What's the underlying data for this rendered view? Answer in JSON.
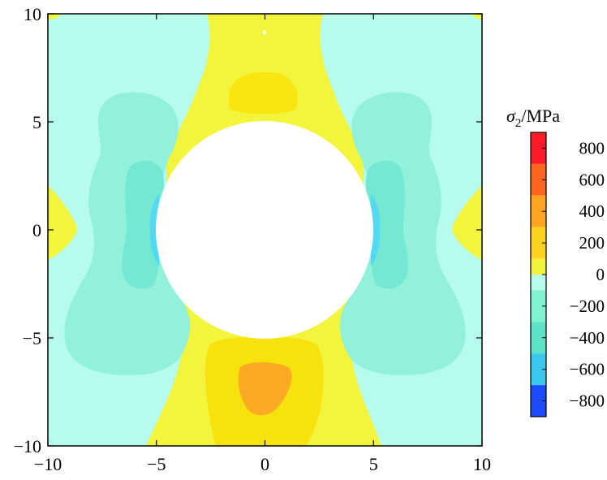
{
  "chart_data": {
    "type": "heatmap",
    "title": "",
    "xlabel": "",
    "ylabel": "",
    "xlim": [
      -10,
      10
    ],
    "ylim": [
      -10,
      10
    ],
    "xticks": [
      "−10",
      "−5",
      "0",
      "5",
      "10"
    ],
    "yticks": [
      "10",
      "5",
      "0",
      "−5",
      "−10"
    ],
    "hole": {
      "center": [
        0,
        0
      ],
      "radius": 5
    },
    "colorbar": {
      "label_symbol": "σ",
      "label_subscript": "2",
      "label_unit": "/MPa",
      "ticks": [
        "800",
        "600",
        "400",
        "200",
        "0",
        "−200",
        "−400",
        "−600",
        "−800"
      ],
      "range": [
        -900,
        900
      ],
      "levels": [
        {
          "min": 700,
          "max": 900,
          "color": "#ff1a2a"
        },
        {
          "min": 500,
          "max": 700,
          "color": "#ff6420"
        },
        {
          "min": 300,
          "max": 500,
          "color": "#ffa321"
        },
        {
          "min": 100,
          "max": 300,
          "color": "#ffd21f"
        },
        {
          "min": 0,
          "max": 100,
          "color": "#f1f23c"
        },
        {
          "min": -100,
          "max": 0,
          "color": "#b7fbec"
        },
        {
          "min": -300,
          "max": -100,
          "color": "#7ff2cf"
        },
        {
          "min": -500,
          "max": -300,
          "color": "#5ee3c8"
        },
        {
          "min": -700,
          "max": -500,
          "color": "#38c8ee"
        },
        {
          "min": -900,
          "max": -700,
          "color": "#1d4cff"
        }
      ]
    },
    "regions": [
      {
        "name": "background",
        "level": "-100..0",
        "color": "#b7fbec"
      },
      {
        "name": "vertical-band",
        "level": "0..100",
        "color": "#f3f43c"
      },
      {
        "name": "side-lobes",
        "level": "0..100",
        "color": "#f3f43c"
      },
      {
        "name": "top-zone",
        "level": "100..300",
        "color": "#f9e60f"
      },
      {
        "name": "bottom-zone",
        "level": "100..300",
        "color": "#f8e20e"
      },
      {
        "name": "bottom-core",
        "level": "300..500",
        "color": "#fbaa26"
      },
      {
        "name": "lateral-zones",
        "level": "-300..-100",
        "color": "#92f1db"
      },
      {
        "name": "inner-zones",
        "level": "-500..-300",
        "color": "#74e8d2"
      },
      {
        "name": "hole-edge",
        "level": "-700..-500",
        "color": "#54d9f2"
      }
    ]
  }
}
